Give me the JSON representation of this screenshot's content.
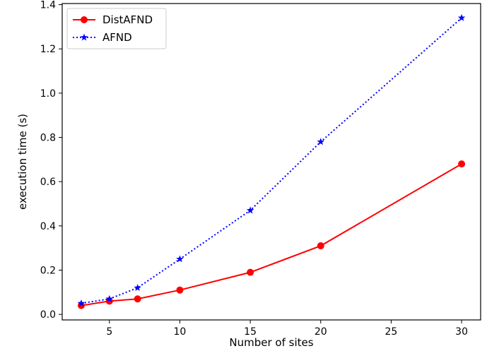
{
  "chart_data": {
    "type": "line",
    "xlabel": "Number of sites",
    "ylabel": "execution time (s)",
    "x_ticks": [
      5,
      10,
      15,
      20,
      25,
      30
    ],
    "y_ticks": [
      0.0,
      0.2,
      0.4,
      0.6,
      0.8,
      1.0,
      1.2,
      1.4
    ],
    "x_tick_labels": [
      "5",
      "10",
      "15",
      "20",
      "25",
      "30"
    ],
    "y_tick_labels": [
      "0.0",
      "0.2",
      "0.4",
      "0.6",
      "0.8",
      "1.0",
      "1.2",
      "1.4"
    ],
    "xlim": [
      1.65,
      31.35
    ],
    "ylim": [
      -0.025,
      1.405
    ],
    "legend_position": "top-left",
    "grid": false,
    "series": [
      {
        "name": "DistAFND",
        "color": "#ff0000",
        "line_style": "solid",
        "marker": "circle",
        "x": [
          3,
          5,
          7,
          10,
          15,
          20,
          30
        ],
        "y": [
          0.04,
          0.06,
          0.07,
          0.11,
          0.19,
          0.31,
          0.68
        ]
      },
      {
        "name": "AFND",
        "color": "#0000ff",
        "line_style": "dotted",
        "marker": "star",
        "x": [
          3,
          5,
          7,
          10,
          15,
          20,
          30
        ],
        "y": [
          0.05,
          0.07,
          0.12,
          0.25,
          0.47,
          0.78,
          1.34
        ]
      }
    ]
  }
}
